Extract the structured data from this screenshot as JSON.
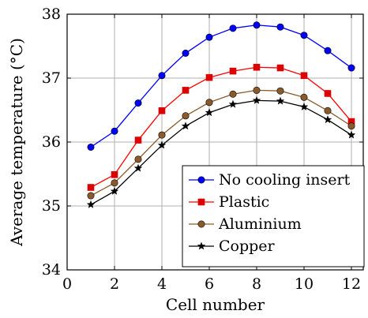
{
  "chart_data": {
    "type": "line",
    "title": "",
    "xlabel": "Cell number",
    "ylabel": "Average temperature (°C)",
    "xlim": [
      0,
      12.5
    ],
    "ylim": [
      34,
      38
    ],
    "xticks": [
      0,
      2,
      4,
      6,
      8,
      10,
      12
    ],
    "yticks": [
      34,
      35,
      36,
      37,
      38
    ],
    "grid": true,
    "legend_position": "bottom-right",
    "x": [
      1,
      2,
      3,
      4,
      5,
      6,
      7,
      8,
      9,
      10,
      11,
      12
    ],
    "series": [
      {
        "name": "No cooling insert",
        "color": "#0000ff",
        "marker": "circle",
        "marker_color": "#0000ff",
        "values": [
          35.92,
          36.17,
          36.61,
          37.04,
          37.39,
          37.64,
          37.78,
          37.83,
          37.8,
          37.67,
          37.43,
          37.16
        ]
      },
      {
        "name": "Plastic",
        "color": "#ff0000",
        "marker": "square",
        "marker_color": "#dd0000",
        "values": [
          35.29,
          35.49,
          36.03,
          36.49,
          36.81,
          37.01,
          37.11,
          37.17,
          37.16,
          37.04,
          36.76,
          36.32
        ]
      },
      {
        "name": "Aluminium",
        "color": "#8b5a2b",
        "marker": "circle",
        "marker_color": "#8b5a2b",
        "values": [
          35.16,
          35.36,
          35.73,
          36.11,
          36.41,
          36.62,
          36.75,
          36.81,
          36.8,
          36.7,
          36.49,
          36.25
        ]
      },
      {
        "name": "Copper",
        "color": "#000000",
        "marker": "star",
        "marker_color": "#000000",
        "values": [
          35.02,
          35.23,
          35.59,
          35.95,
          36.25,
          36.46,
          36.59,
          36.65,
          36.64,
          36.55,
          36.35,
          36.11
        ]
      }
    ]
  }
}
